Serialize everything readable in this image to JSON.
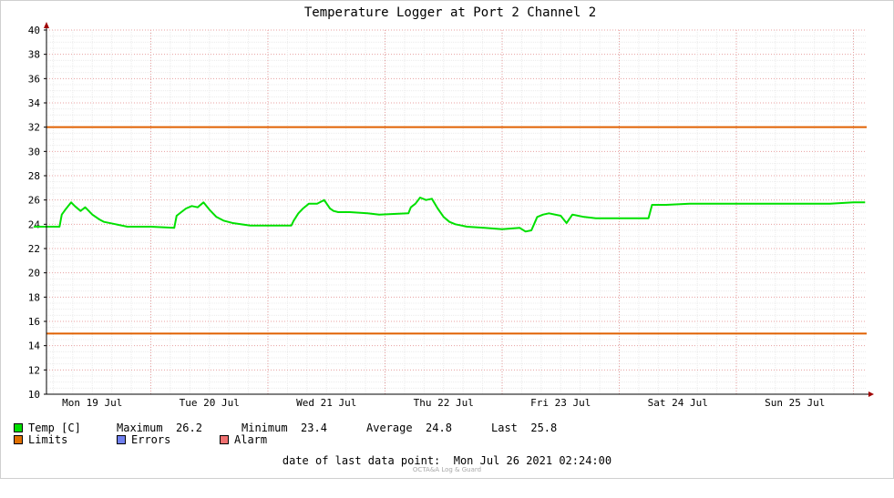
{
  "chart_data": {
    "type": "line",
    "title": "Temperature Logger at Port 2 Channel 2",
    "y_ticks": [
      10,
      12,
      14,
      16,
      18,
      20,
      22,
      24,
      26,
      28,
      30,
      32,
      34,
      36,
      38,
      40
    ],
    "ylim": [
      10,
      40
    ],
    "x_range_days": [
      0,
      7.1
    ],
    "x_day_labels": [
      "Mon 19 Jul",
      "Tue 20 Jul",
      "Wed 21 Jul",
      "Thu 22 Jul",
      "Fri 23 Jul",
      "Sat 24 Jul",
      "Sun 25 Jul"
    ],
    "grid": true,
    "series": [
      {
        "name": "Temp [C]",
        "color": "#00e000",
        "x": [
          0,
          0.22,
          0.24,
          0.27,
          0.32,
          0.35,
          0.4,
          0.44,
          0.5,
          0.56,
          0.6,
          0.7,
          0.8,
          1.0,
          1.2,
          1.22,
          1.26,
          1.3,
          1.35,
          1.4,
          1.45,
          1.5,
          1.56,
          1.62,
          1.7,
          1.85,
          2.0,
          2.2,
          2.22,
          2.26,
          2.3,
          2.35,
          2.42,
          2.48,
          2.53,
          2.56,
          2.6,
          2.7,
          2.85,
          2.95,
          3.2,
          3.22,
          3.26,
          3.3,
          3.35,
          3.4,
          3.45,
          3.5,
          3.55,
          3.6,
          3.7,
          3.85,
          4.0,
          4.15,
          4.2,
          4.25,
          4.3,
          4.35,
          4.4,
          4.5,
          4.55,
          4.6,
          4.65,
          4.7,
          4.8,
          5.0,
          5.2,
          5.25,
          5.28,
          5.4,
          5.6,
          5.8,
          6.0,
          6.2,
          6.4,
          6.6,
          6.8,
          7.0,
          7.1
        ],
        "values": [
          23.8,
          23.8,
          24.8,
          25.2,
          25.8,
          25.5,
          25.1,
          25.4,
          24.8,
          24.4,
          24.2,
          24.0,
          23.8,
          23.8,
          23.7,
          24.7,
          25.0,
          25.3,
          25.5,
          25.4,
          25.8,
          25.2,
          24.6,
          24.3,
          24.1,
          23.9,
          23.9,
          23.9,
          24.3,
          24.9,
          25.3,
          25.7,
          25.7,
          26.0,
          25.3,
          25.1,
          25.0,
          25.0,
          24.9,
          24.8,
          24.9,
          25.4,
          25.7,
          26.2,
          26.0,
          26.1,
          25.3,
          24.6,
          24.2,
          24.0,
          23.8,
          23.7,
          23.6,
          23.7,
          23.4,
          23.5,
          24.6,
          24.8,
          24.9,
          24.7,
          24.1,
          24.8,
          24.7,
          24.6,
          24.5,
          24.5,
          24.5,
          24.5,
          25.6,
          25.6,
          25.7,
          25.7,
          25.7,
          25.7,
          25.7,
          25.7,
          25.7,
          25.8,
          25.8
        ]
      }
    ],
    "limits": {
      "name": "Limits",
      "color": "#e06000",
      "values": [
        32,
        15
      ]
    }
  },
  "legend": {
    "temp_label": "Temp [C]",
    "temp_color": "#00e000",
    "maximum_label": "Maximum",
    "maximum_value": "26.2",
    "minimum_label": "Minimum",
    "minimum_value": "23.4",
    "average_label": "Average",
    "average_value": "24.8",
    "last_label": "Last",
    "last_value": "25.8",
    "limits_label": "Limits",
    "limits_color": "#e07000",
    "errors_label": "Errors",
    "errors_color": "#7080f0",
    "alarm_label": "Alarm",
    "alarm_color": "#f07070"
  },
  "footer": {
    "last_point_label": "date of last data point:",
    "last_point_value": "Mon Jul 26 2021 02:24:00",
    "watermark": "OCTA&A Log & Guard"
  }
}
